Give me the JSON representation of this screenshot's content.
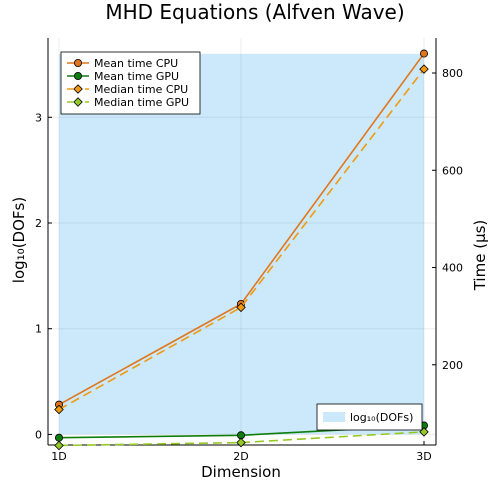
{
  "chart_data": {
    "type": "line",
    "title": "MHD Equations (Alfven Wave)",
    "xlabel": "Dimension",
    "categories": [
      "1D",
      "2D",
      "3D"
    ],
    "left_axis": {
      "label": "log₁₀(DOFs)",
      "ylim": [
        -0.1,
        3.75
      ],
      "ticks": [
        0,
        1,
        2,
        3
      ]
    },
    "right_axis": {
      "label": "Time (µs)",
      "ylim": [
        35,
        872
      ],
      "ticks": [
        200,
        400,
        600,
        800
      ]
    },
    "area_series": {
      "name": "log₁₀(DOFs)",
      "axis": "left",
      "values": [
        3.6,
        3.6,
        3.6
      ],
      "color": "#cce9fb"
    },
    "series": [
      {
        "name": "Mean time CPU",
        "axis": "right",
        "values": [
          118,
          325,
          840
        ],
        "color": "#e0761d",
        "dash": false,
        "marker": "circle"
      },
      {
        "name": "Mean time GPU",
        "axis": "right",
        "values": [
          50,
          55,
          75
        ],
        "color": "#0e7d0e",
        "dash": false,
        "marker": "circle"
      },
      {
        "name": "Median time CPU",
        "axis": "right",
        "values": [
          108,
          318,
          808
        ],
        "color": "#f09a10",
        "dash": true,
        "marker": "diamond"
      },
      {
        "name": "Median time GPU",
        "axis": "right",
        "values": [
          34,
          40,
          62
        ],
        "color": "#95c926",
        "dash": true,
        "marker": "diamond"
      }
    ],
    "legend_placement": [
      "top-left",
      "bottom-right"
    ],
    "grid": true
  }
}
